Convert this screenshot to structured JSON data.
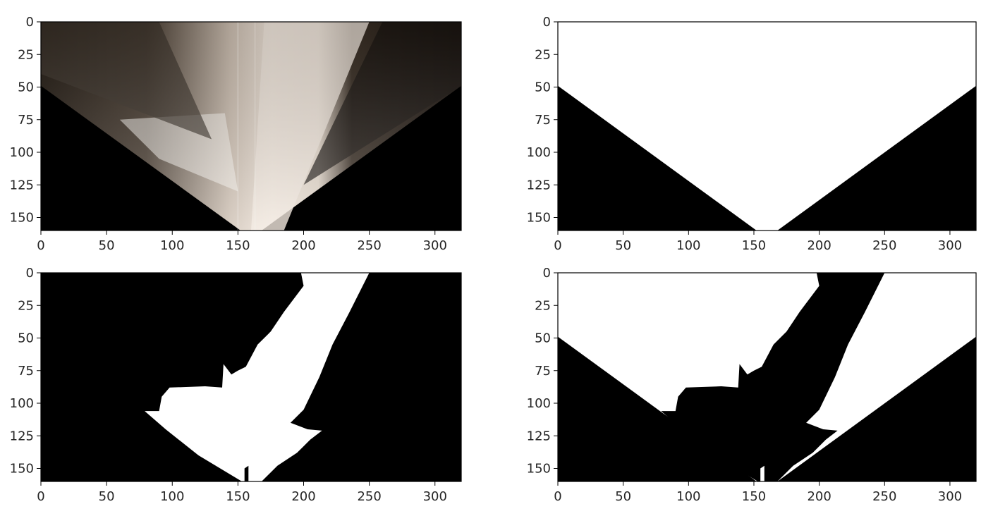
{
  "figure": {
    "colors": {
      "background": "#ffffff",
      "axes_frame": "#000000",
      "tick_text": "#262626",
      "mask_white": "#ffffff",
      "mask_black": "#000000",
      "road_light": "#e8ddd2",
      "road_dark": "#241c14"
    }
  },
  "chart_data": [
    {
      "type": "heatmap",
      "title": "",
      "xlabel": "",
      "ylabel": "",
      "xlim": [
        0,
        320
      ],
      "ylim": [
        160,
        0
      ],
      "xticks": [
        "0",
        "50",
        "100",
        "150",
        "200",
        "250",
        "300"
      ],
      "yticks": [
        "0",
        "25",
        "50",
        "75",
        "100",
        "125",
        "150"
      ],
      "content": "perspective-warped road color image (image rows 0–160, columns 0–320)"
    },
    {
      "type": "heatmap",
      "title": "",
      "xlabel": "",
      "ylabel": "",
      "xlim": [
        0,
        320
      ],
      "ylim": [
        160,
        0
      ],
      "xticks": [
        "0",
        "50",
        "100",
        "150",
        "200",
        "250",
        "300"
      ],
      "yticks": [
        "0",
        "25",
        "50",
        "75",
        "100",
        "125",
        "150"
      ],
      "content": "binary mask: white V-shaped field of view, black triangles below"
    },
    {
      "type": "heatmap",
      "title": "",
      "xlabel": "",
      "ylabel": "",
      "xlim": [
        0,
        320
      ],
      "ylim": [
        160,
        0
      ],
      "xticks": [
        "0",
        "50",
        "100",
        "150",
        "200",
        "250",
        "300"
      ],
      "yticks": [
        "0",
        "25",
        "50",
        "75",
        "100",
        "125",
        "150"
      ],
      "content": "binary threshold: white navigable road region on black"
    },
    {
      "type": "heatmap",
      "title": "",
      "xlabel": "",
      "ylabel": "",
      "xlim": [
        0,
        320
      ],
      "ylim": [
        160,
        0
      ],
      "xticks": [
        "0",
        "50",
        "100",
        "150",
        "200",
        "250",
        "300"
      ],
      "yticks": [
        "0",
        "25",
        "50",
        "75",
        "100",
        "125",
        "150"
      ],
      "content": "binary obstacle map: white obstacles within field of view, black road"
    }
  ]
}
